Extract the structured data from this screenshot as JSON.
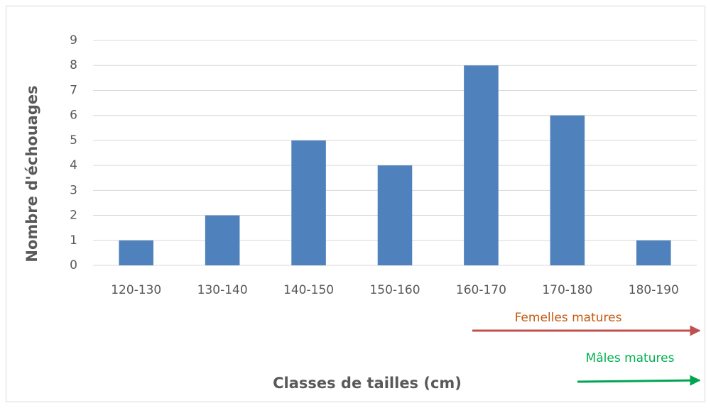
{
  "chart_data": {
    "type": "bar",
    "x_label": "Classes de tailles (cm)",
    "y_label": "Nombre d'échouages",
    "categories": [
      "120-130",
      "130-140",
      "140-150",
      "150-160",
      "160-170",
      "170-180",
      "180-190"
    ],
    "values": [
      1,
      2,
      5,
      4,
      8,
      6,
      1
    ],
    "color": "#4f81bd",
    "ylim": [
      0,
      9
    ],
    "yticks": [
      0,
      1,
      2,
      3,
      4,
      5,
      6,
      7,
      8,
      9
    ],
    "grid": true,
    "annotations": [
      {
        "text": "Femelles matures",
        "color": "#c55a11"
      },
      {
        "text": "Mâles matures",
        "color": "#00b050"
      }
    ]
  }
}
